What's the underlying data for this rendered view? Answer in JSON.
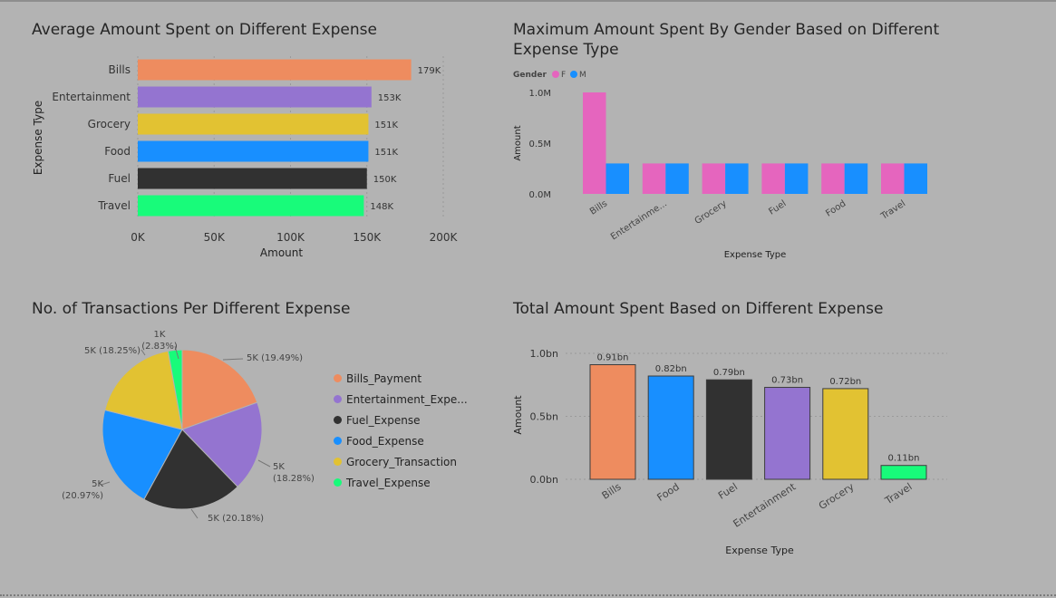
{
  "colors": {
    "bills": "#ee8c5f",
    "entertainment": "#9474d0",
    "grocery": "#e2c232",
    "food": "#188fff",
    "fuel": "#313131",
    "travel": "#18fb7a",
    "female": "#e565be",
    "male": "#188fff"
  },
  "charts": [
    {
      "type": "bar",
      "orientation": "horizontal",
      "title": "Average Amount Spent on Different Expense",
      "ylabel": "Expense Type",
      "xlabel": "Amount",
      "categories": [
        "Bills",
        "Entertainment",
        "Grocery",
        "Food",
        "Fuel",
        "Travel"
      ],
      "values": [
        179000,
        153000,
        151000,
        151000,
        150000,
        148000
      ],
      "data_labels": [
        "179K",
        "153K",
        "151K",
        "151K",
        "150K",
        "148K"
      ],
      "xticks": [
        "0K",
        "50K",
        "100K",
        "150K",
        "200K"
      ],
      "xlim": [
        0,
        200000
      ],
      "grid": true
    },
    {
      "type": "bar",
      "orientation": "vertical",
      "title_line1": "Maximum Amount Spent By Gender Based on Different",
      "title_line2": "Expense Type",
      "legend_title": "Gender",
      "legend_placement": "top-left",
      "xlabel": "Expense Type",
      "ylabel": "Amount",
      "categories": [
        "Bills",
        "Entertainme...",
        "Grocery",
        "Fuel",
        "Food",
        "Travel"
      ],
      "series": [
        {
          "name": "F",
          "values": [
            1000000,
            300000,
            300000,
            300000,
            300000,
            300000
          ]
        },
        {
          "name": "M",
          "values": [
            300000,
            300000,
            300000,
            300000,
            300000,
            300000
          ]
        }
      ],
      "yticks": [
        "0.0M",
        "0.5M",
        "1.0M"
      ],
      "ylim": [
        0,
        1000000
      ]
    },
    {
      "type": "pie",
      "title": "No. of Transactions Per Different Expense",
      "legend_placement": "right",
      "slices": [
        {
          "name": "Bills_Payment",
          "value": 19.49,
          "label_top": "5K (19.49%)",
          "label_bottom": ""
        },
        {
          "name": "Entertainment_Expe...",
          "value": 18.28,
          "label_top": "5K",
          "label_bottom": "(18.28%)"
        },
        {
          "name": "Fuel_Expense",
          "value": 20.18,
          "label_top": "5K (20.18%)",
          "label_bottom": ""
        },
        {
          "name": "Food_Expense",
          "value": 20.97,
          "label_top": "5K",
          "label_bottom": "(20.97%)"
        },
        {
          "name": "Grocery_Transaction",
          "value": 18.25,
          "label_top": "5K (18.25%)",
          "label_bottom": ""
        },
        {
          "name": "Travel_Expense",
          "value": 2.83,
          "label_top": "1K",
          "label_bottom": "(2.83%)"
        }
      ]
    },
    {
      "type": "bar",
      "orientation": "vertical",
      "title": "Total Amount Spent Based on Different Expense",
      "xlabel": "Expense Type",
      "ylabel": "Amount",
      "categories": [
        "Bills",
        "Food",
        "Fuel",
        "Entertainment",
        "Grocery",
        "Travel"
      ],
      "values": [
        0.91,
        0.82,
        0.79,
        0.73,
        0.72,
        0.11
      ],
      "data_labels": [
        "0.91bn",
        "0.82bn",
        "0.79bn",
        "0.73bn",
        "0.72bn",
        "0.11bn"
      ],
      "yticks": [
        "0.0bn",
        "0.5bn",
        "1.0bn"
      ],
      "ylim": [
        0,
        1.0
      ],
      "grid": true
    }
  ]
}
